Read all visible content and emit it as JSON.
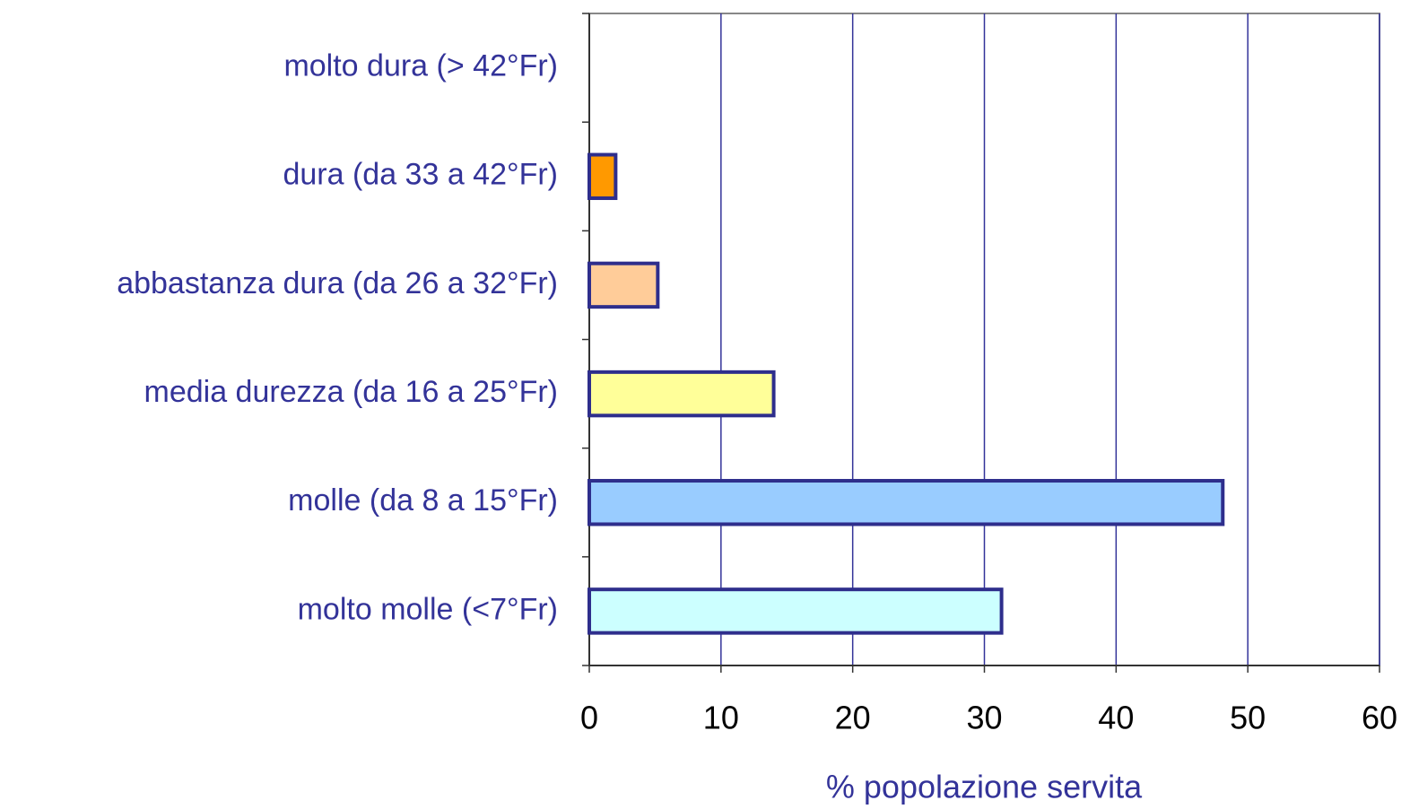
{
  "chart_data": {
    "type": "hbar",
    "x_label": "% popolazione servita",
    "categories": [
      "molto dura (> 42°Fr)",
      "dura (da 33 a 42°Fr)",
      "abbastanza dura (da 26 a 32°Fr)",
      "media durezza (da 16 a 25°Fr)",
      "molle (da 8 a 15°Fr)",
      "molto molle (<7°Fr)"
    ],
    "values": [
      0,
      2.0,
      5.2,
      14.0,
      48.1,
      31.3
    ],
    "colors": [
      null,
      "#ff9900",
      "#ffcc99",
      "#ffff99",
      "#99ccff",
      "#ccffff"
    ],
    "edge_color": "#2e2e8c",
    "xlim": [
      0,
      60
    ],
    "xticks": [
      0,
      10,
      20,
      30,
      40,
      50,
      60
    ],
    "grid": true
  }
}
